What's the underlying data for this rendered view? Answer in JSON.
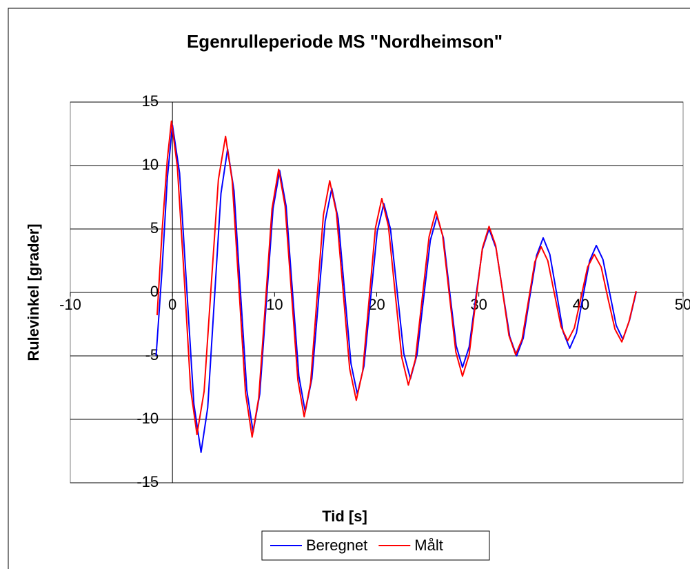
{
  "chart_data": {
    "type": "line",
    "title": "Egenrulleperiode MS \"Nordheimson\"",
    "x_label": "Tid [s]",
    "y_label": "Rulevinkel [grader]",
    "xlim": [
      -10,
      50
    ],
    "xticks": [
      -10,
      0,
      10,
      20,
      30,
      40,
      50
    ],
    "ylim": [
      -15,
      15
    ],
    "yticks": [
      -15,
      -10,
      -5,
      0,
      5,
      10,
      15
    ],
    "grid": true,
    "legend": "bottom",
    "series": [
      {
        "name": "Beregnet",
        "color": "#0000ff",
        "x": [
          -1.6,
          -1.0,
          -0.5,
          0,
          0.7,
          1.4,
          2.1,
          2.8,
          3.45,
          4.1,
          4.75,
          5.4,
          6.03,
          6.65,
          7.28,
          7.9,
          8.55,
          9.2,
          9.85,
          10.5,
          11.13,
          11.75,
          12.38,
          13.0,
          13.65,
          14.3,
          14.95,
          15.6,
          16.23,
          16.85,
          17.48,
          18.1,
          18.75,
          19.4,
          20.05,
          20.7,
          21.35,
          22.0,
          22.65,
          23.3,
          23.95,
          24.6,
          25.25,
          25.9,
          26.53,
          27.15,
          27.78,
          28.4,
          29.05,
          29.7,
          30.35,
          31.0,
          31.68,
          32.35,
          33.03,
          33.7,
          34.35,
          35.0,
          35.65,
          36.3,
          36.95,
          37.6,
          38.25,
          38.9,
          39.55,
          40.2,
          40.85,
          41.5,
          42.15,
          42.8,
          43.45,
          44.1,
          44.75,
          45.4
        ],
        "values": [
          -5,
          2,
          9,
          13.2,
          9.4,
          0.3,
          -8.8,
          -12.6,
          -9.1,
          -0.65,
          7.8,
          11.3,
          8.0,
          0.15,
          -7.7,
          -11,
          -8.0,
          -0.7,
          6.6,
          9.6,
          6.8,
          0.1,
          -6.6,
          -9.4,
          -6.8,
          -0.6,
          5.6,
          8.2,
          5.8,
          0.1,
          -5.6,
          -8,
          -5.8,
          -0.5,
          4.8,
          7.0,
          5.0,
          0.1,
          -4.8,
          -6.8,
          -4.9,
          -0.4,
          4.1,
          6.0,
          4.3,
          0,
          -4.2,
          -5.9,
          -4.3,
          -0.4,
          3.4,
          5.0,
          3.5,
          0,
          -3.5,
          -5,
          -3.6,
          -0.3,
          2.9,
          4.3,
          3.0,
          0,
          -3.1,
          -4.4,
          -3.2,
          -0.3,
          2.5,
          3.7,
          2.6,
          0,
          -2.6,
          -3.7,
          -2.2,
          0
        ]
      },
      {
        "name": "Målt",
        "color": "#ff0000",
        "x": [
          -1.5,
          -1.0,
          -0.5,
          -0.1,
          0.48,
          1.15,
          1.78,
          2.4,
          3.1,
          3.8,
          4.5,
          5.2,
          5.85,
          6.5,
          7.15,
          7.8,
          8.45,
          9.1,
          9.75,
          10.4,
          11.03,
          11.65,
          12.28,
          12.9,
          13.53,
          14.15,
          14.78,
          15.4,
          16.05,
          16.7,
          17.35,
          18.0,
          18.63,
          19.25,
          19.88,
          20.5,
          21.15,
          21.8,
          22.45,
          23.1,
          23.78,
          24.45,
          25.13,
          25.8,
          26.45,
          27.1,
          27.75,
          28.4,
          29.05,
          29.7,
          30.35,
          31.0,
          31.65,
          32.3,
          32.95,
          33.6,
          34.23,
          34.85,
          35.48,
          36.1,
          36.75,
          37.4,
          38.05,
          38.7,
          39.35,
          40.0,
          40.65,
          41.3,
          41.98,
          42.65,
          43.33,
          44.0,
          44.7,
          45.4
        ],
        "values": [
          -1.8,
          5,
          10.5,
          13.5,
          9.9,
          1.2,
          -7.6,
          -11.2,
          -7.8,
          0.6,
          8.9,
          12.3,
          8.8,
          0.5,
          -7.9,
          -11.4,
          -8.3,
          -0.9,
          6.6,
          9.7,
          6.8,
          0,
          -6.9,
          -9.8,
          -7.1,
          -0.5,
          6.1,
          8.8,
          6.3,
          0.2,
          -6.0,
          -8.5,
          -6.2,
          -0.6,
          5.1,
          7.4,
          5.2,
          0,
          -5.1,
          -7.3,
          -5.3,
          -0.5,
          4.4,
          6.4,
          4.5,
          -0.1,
          -4.7,
          -6.6,
          -4.9,
          -0.7,
          3.5,
          5.2,
          3.7,
          0.2,
          -3.4,
          -4.9,
          -3.7,
          -0.7,
          2.4,
          3.6,
          2.5,
          -0.1,
          -2.7,
          -3.8,
          -2.8,
          -0.4,
          2.0,
          3.0,
          2.0,
          -0.5,
          -2.9,
          -3.9,
          -2.3,
          0.1
        ]
      }
    ]
  }
}
